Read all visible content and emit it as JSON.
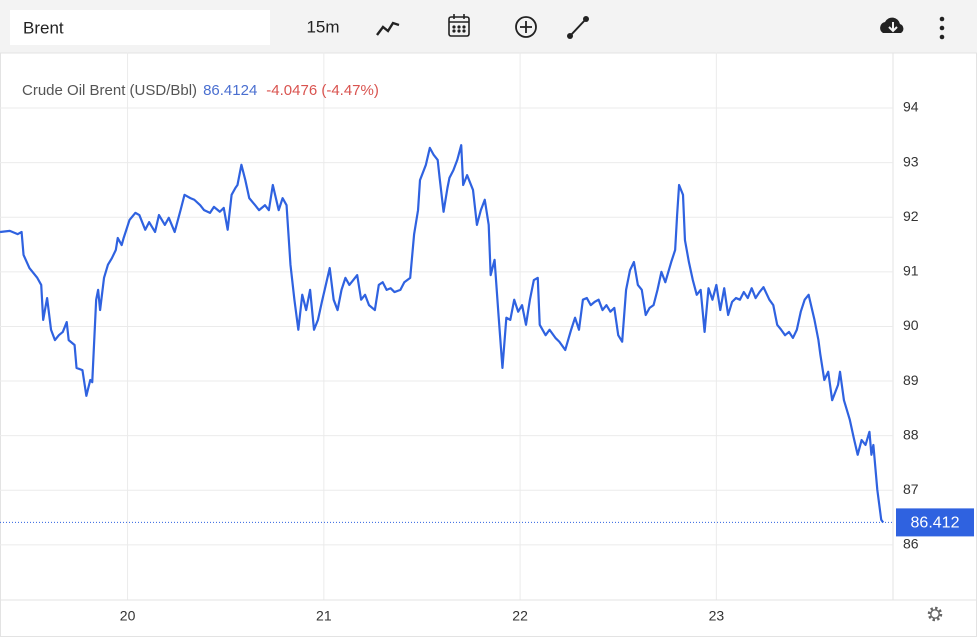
{
  "toolbar": {
    "search": "Brent",
    "interval": "15m"
  },
  "chart_data": {
    "type": "line",
    "price": "86.4124",
    "change": "-4.0476 (-4.47%)",
    "last_value": 86.412,
    "last_label": "86.412",
    "last_color": "#2f62e0",
    "x": [
      19.35,
      19.4,
      19.44,
      19.46,
      19.47,
      19.5,
      19.54,
      19.56,
      19.57,
      19.59,
      19.61,
      19.63,
      19.65,
      19.67,
      19.69,
      19.7,
      19.73,
      19.74,
      19.77,
      19.79,
      19.81,
      19.82,
      19.84,
      19.85,
      19.86,
      19.88,
      19.9,
      19.92,
      19.94,
      19.95,
      19.97,
      19.98,
      20.01,
      20.04,
      20.06,
      20.09,
      20.11,
      20.14,
      20.16,
      20.19,
      20.21,
      20.24,
      20.27,
      20.29,
      20.32,
      20.34,
      20.37,
      20.39,
      20.42,
      20.44,
      20.47,
      20.49,
      20.51,
      20.53,
      20.55,
      20.56,
      20.58,
      20.6,
      20.62,
      20.65,
      20.67,
      20.7,
      20.72,
      20.74,
      20.77,
      20.79,
      20.81,
      20.83,
      20.85,
      20.87,
      20.89,
      20.91,
      20.93,
      20.95,
      20.97,
      20.99,
      21.01,
      21.03,
      21.05,
      21.07,
      21.09,
      21.11,
      21.13,
      21.15,
      21.17,
      21.19,
      21.21,
      21.23,
      21.26,
      21.28,
      21.3,
      21.32,
      21.34,
      21.36,
      21.39,
      21.41,
      21.44,
      21.46,
      21.48,
      21.49,
      21.52,
      21.54,
      21.56,
      21.58,
      21.59,
      21.61,
      21.63,
      21.64,
      21.66,
      21.68,
      21.7,
      21.71,
      21.73,
      21.76,
      21.78,
      21.8,
      21.82,
      21.84,
      21.85,
      21.87,
      21.89,
      21.91,
      21.93,
      21.95,
      21.97,
      21.99,
      22.01,
      22.03,
      22.05,
      22.07,
      22.09,
      22.1,
      22.13,
      22.15,
      22.18,
      22.2,
      22.23,
      22.26,
      22.28,
      22.3,
      22.32,
      22.34,
      22.36,
      22.38,
      22.4,
      22.42,
      22.44,
      22.46,
      22.48,
      22.5,
      22.52,
      22.54,
      22.56,
      22.58,
      22.6,
      22.62,
      22.64,
      22.66,
      22.68,
      22.7,
      22.72,
      22.74,
      22.77,
      22.79,
      22.8,
      22.81,
      22.83,
      22.84,
      22.86,
      22.88,
      22.9,
      22.92,
      22.94,
      22.96,
      22.98,
      23.0,
      23.02,
      23.04,
      23.06,
      23.08,
      23.1,
      23.12,
      23.14,
      23.16,
      23.18,
      23.2,
      23.22,
      23.24,
      23.27,
      23.29,
      23.31,
      23.33,
      23.35,
      23.37,
      23.39,
      23.41,
      23.43,
      23.45,
      23.47,
      23.5,
      23.52,
      23.53,
      23.55,
      23.57,
      23.59,
      23.62,
      23.63,
      23.65,
      23.68,
      23.7,
      23.72,
      23.74,
      23.76,
      23.78,
      23.79,
      23.8,
      23.82,
      23.84,
      23.85
    ],
    "series": [
      {
        "name": "Crude Oil Brent (USD/Bbl)",
        "color": "#2f62e0",
        "values": [
          91.73,
          91.75,
          91.69,
          91.73,
          91.31,
          91.07,
          90.89,
          90.76,
          90.12,
          90.52,
          89.94,
          89.75,
          89.84,
          89.9,
          90.08,
          89.75,
          89.66,
          89.24,
          89.2,
          88.73,
          89.02,
          88.98,
          90.49,
          90.67,
          90.3,
          90.89,
          91.13,
          91.25,
          91.4,
          91.62,
          91.49,
          91.62,
          91.95,
          92.08,
          92.04,
          91.77,
          91.91,
          91.73,
          92.04,
          91.86,
          91.99,
          91.73,
          92.13,
          92.41,
          92.35,
          92.32,
          92.22,
          92.13,
          92.08,
          92.19,
          92.1,
          92.17,
          91.77,
          92.41,
          92.54,
          92.59,
          92.96,
          92.68,
          92.35,
          92.22,
          92.13,
          92.22,
          92.13,
          92.59,
          92.13,
          92.35,
          92.22,
          91.13,
          90.49,
          89.94,
          90.58,
          90.3,
          90.67,
          89.94,
          90.12,
          90.45,
          90.76,
          91.07,
          90.49,
          90.3,
          90.67,
          90.89,
          90.76,
          90.85,
          90.94,
          90.49,
          90.58,
          90.39,
          90.3,
          90.76,
          90.81,
          90.67,
          90.7,
          90.63,
          90.67,
          90.81,
          90.89,
          91.69,
          92.13,
          92.68,
          92.96,
          93.27,
          93.14,
          93.05,
          92.72,
          92.1,
          92.54,
          92.72,
          92.86,
          93.05,
          93.32,
          92.59,
          92.77,
          92.5,
          91.86,
          92.13,
          92.32,
          91.86,
          90.94,
          91.22,
          90.21,
          89.24,
          90.16,
          90.12,
          90.49,
          90.27,
          90.39,
          90.03,
          90.49,
          90.85,
          90.89,
          90.03,
          89.84,
          89.94,
          89.79,
          89.72,
          89.57,
          89.94,
          90.16,
          89.94,
          90.49,
          90.52,
          90.39,
          90.45,
          90.49,
          90.3,
          90.39,
          90.27,
          90.34,
          89.84,
          89.72,
          90.67,
          91.03,
          91.18,
          90.76,
          90.67,
          90.21,
          90.34,
          90.39,
          90.67,
          91.0,
          90.81,
          91.18,
          91.4,
          92.04,
          92.59,
          92.41,
          91.58,
          91.18,
          90.85,
          90.58,
          90.67,
          89.9,
          90.7,
          90.49,
          90.76,
          90.3,
          90.7,
          90.21,
          90.45,
          90.52,
          90.49,
          90.63,
          90.52,
          90.7,
          90.52,
          90.63,
          90.72,
          90.49,
          90.39,
          90.03,
          89.94,
          89.84,
          89.9,
          89.79,
          89.94,
          90.27,
          90.49,
          90.58,
          90.12,
          89.75,
          89.48,
          89.02,
          89.17,
          88.65,
          88.93,
          89.17,
          88.65,
          88.29,
          87.96,
          87.65,
          87.92,
          87.83,
          88.07,
          87.65,
          87.83,
          87.01,
          86.46,
          86.41
        ]
      }
    ],
    "xlim": [
      19.35,
      23.9
    ],
    "xticks": [
      20,
      21,
      22,
      23
    ],
    "ylim": [
      85,
      95
    ],
    "yticks": [
      86,
      87,
      88,
      89,
      90,
      91,
      92,
      93,
      94
    ],
    "grid": true
  }
}
